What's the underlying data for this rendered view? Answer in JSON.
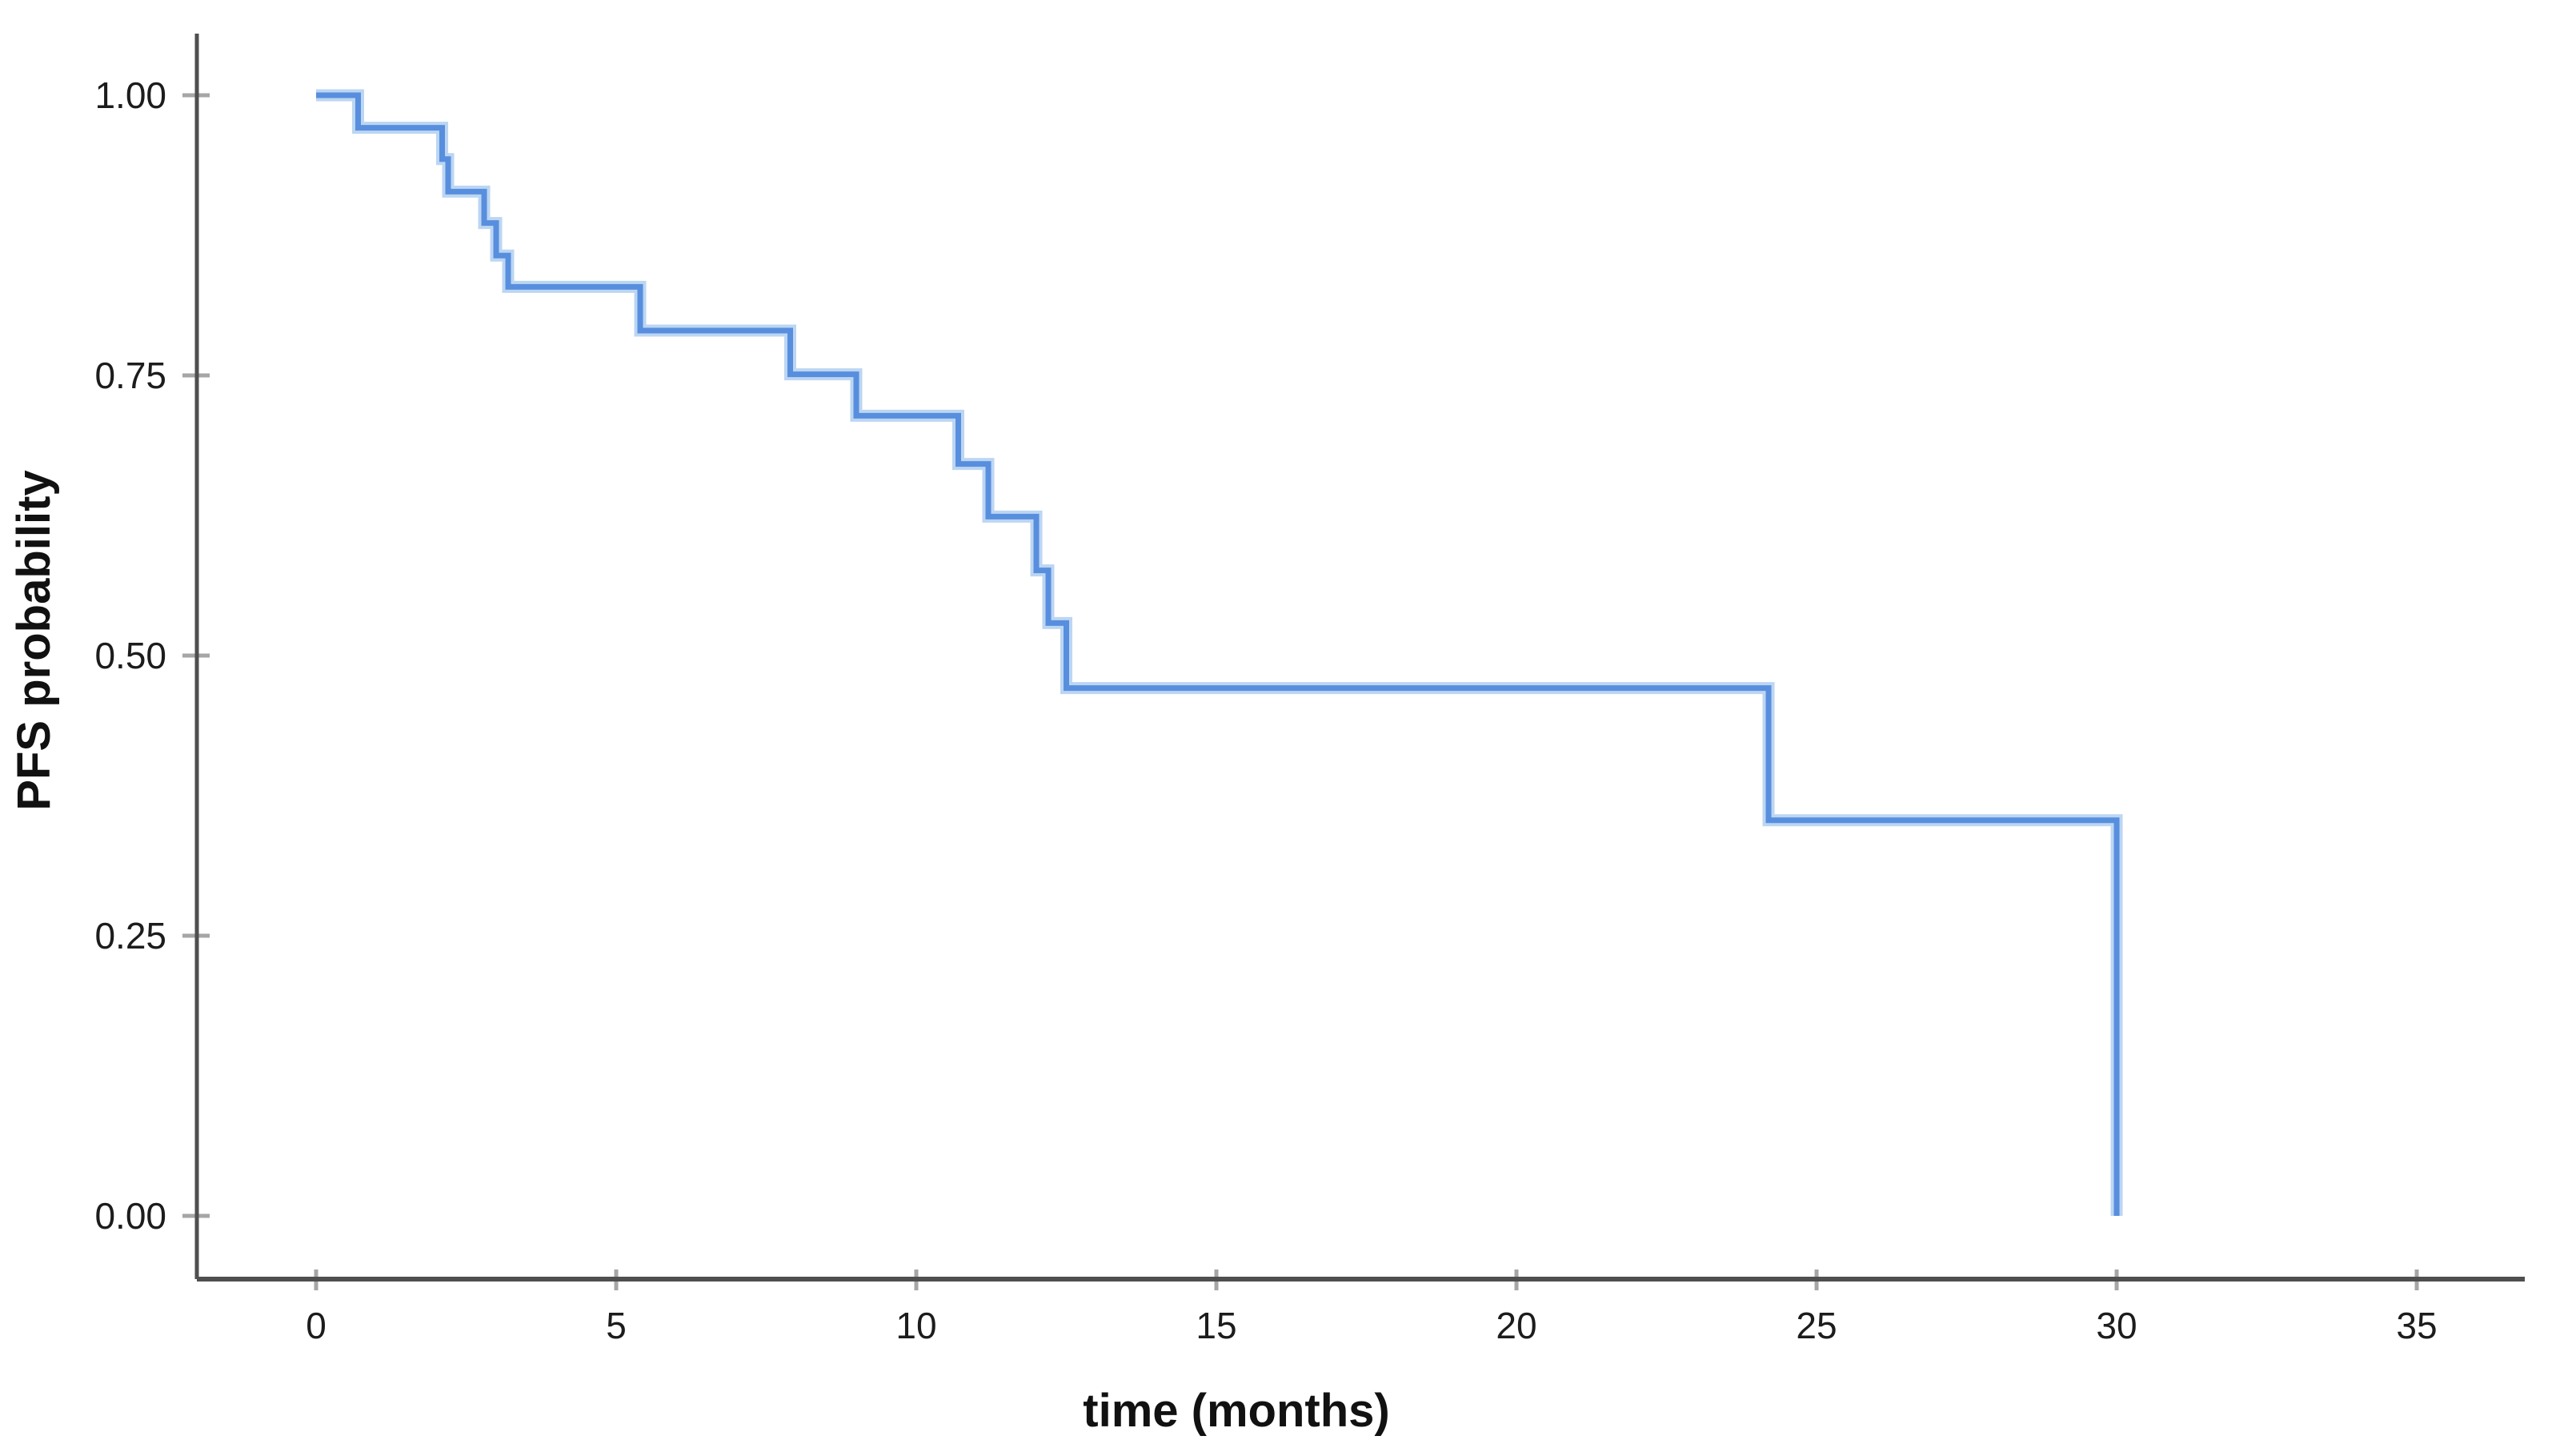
{
  "chart_data": {
    "type": "line",
    "subtype": "kaplan-meier-step-curve",
    "title": "",
    "xlabel": "time (months)",
    "ylabel": "PFS probability",
    "x_ticks": [
      0,
      5,
      10,
      15,
      20,
      25,
      30,
      35
    ],
    "x_tick_labels": [
      "0",
      "5",
      "10",
      "15",
      "20",
      "25",
      "30",
      "35"
    ],
    "y_ticks": [
      1.0,
      0.75,
      0.5,
      0.25,
      0.0
    ],
    "y_tick_labels": [
      "1.00",
      "0.75",
      "0.50",
      "0.25",
      "0.00"
    ],
    "xlim": [
      -2.0,
      36.8
    ],
    "ylim": [
      0.0,
      1.056
    ],
    "grid": false,
    "legend": null,
    "series": [
      {
        "name": "PFS probability",
        "step_times": [
          0,
          0.7,
          2.1,
          2.2,
          2.8,
          3.0,
          3.2,
          5.4,
          7.9,
          9.0,
          10.7,
          11.2,
          12.0,
          12.2,
          12.5,
          24.2,
          30.0
        ],
        "step_survival": [
          1.0,
          0.971,
          0.943,
          0.914,
          0.886,
          0.857,
          0.829,
          0.79,
          0.751,
          0.714,
          0.671,
          0.624,
          0.576,
          0.529,
          0.471,
          0.353,
          0.0
        ],
        "color": "#588ede",
        "halo_color": "#bcd6f2"
      }
    ]
  },
  "colors": {
    "background": "#ffffff",
    "axis_line": "#4f4f4f",
    "tick_mark": "#a6a6a6",
    "tick_label": "#1c1c1c",
    "curve": "#588ede",
    "curve_halo": "#bcd6f2"
  }
}
